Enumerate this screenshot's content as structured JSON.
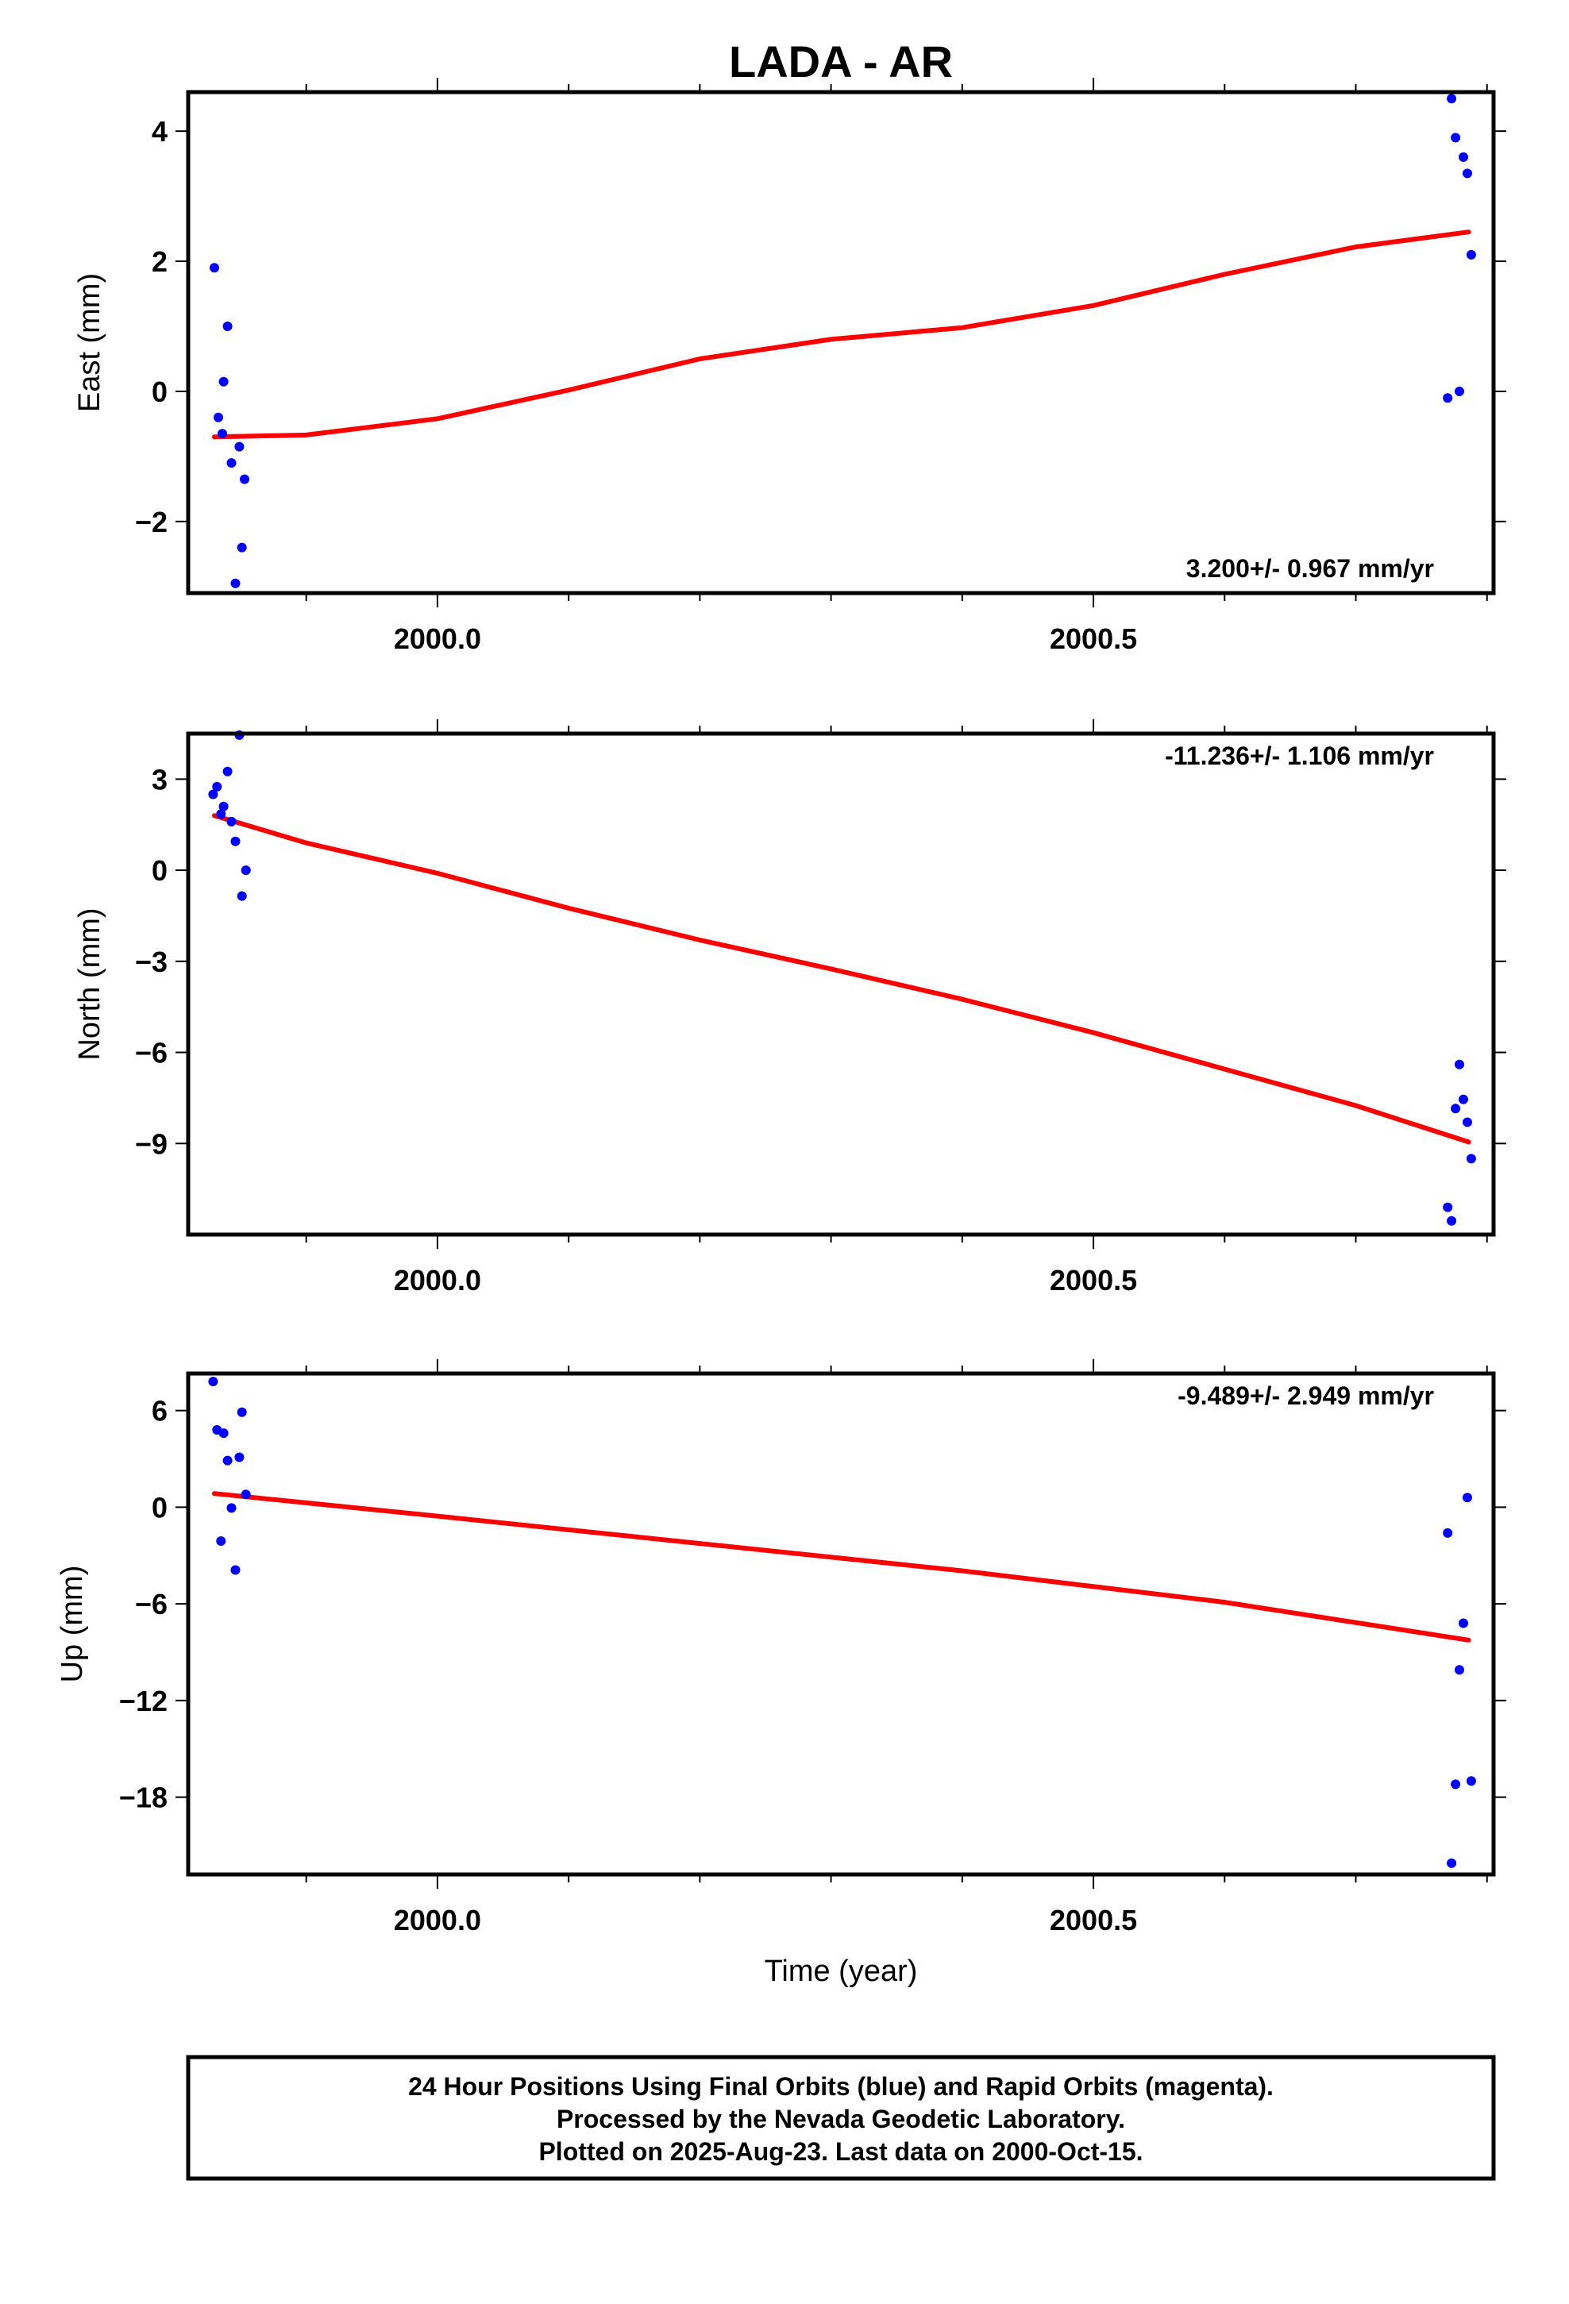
{
  "chart_data": {
    "type": "scatter",
    "title": "LADA - AR",
    "xlabel": "Time (year)",
    "xlim": [
      1999.81,
      2000.805
    ],
    "x_ticks": [
      "2000.0",
      "2000.5"
    ],
    "footer": [
      "24 Hour Positions Using Final Orbits (blue) and Rapid Orbits (magenta).",
      "Processed by the Nevada Geodetic Laboratory.",
      "Plotted on 2025-Aug-23. Last data on 2000-Oct-15."
    ],
    "colors": {
      "points": "#0000ff",
      "fit": "#ff0000",
      "frame": "#000000"
    },
    "panels": [
      {
        "ylabel": "East (mm)",
        "rate": "3.200+/- 0.967 mm/yr",
        "rate_position": "bottom-right",
        "ylim": [
          -3.1,
          4.6
        ],
        "y_ticks": [
          -2,
          0,
          2,
          4
        ],
        "y_tick_labels": [
          "−2",
          "0",
          "2",
          "4"
        ],
        "points": [
          [
            1999.83,
            1.9
          ],
          [
            1999.833,
            -0.4
          ],
          [
            1999.836,
            -0.65
          ],
          [
            1999.837,
            0.15
          ],
          [
            1999.84,
            1.0
          ],
          [
            1999.843,
            -1.1
          ],
          [
            1999.846,
            -2.95
          ],
          [
            1999.849,
            -0.85
          ],
          [
            1999.851,
            -2.4
          ],
          [
            1999.853,
            -1.35
          ],
          [
            2000.77,
            -0.1
          ],
          [
            2000.773,
            4.5
          ],
          [
            2000.776,
            3.9
          ],
          [
            2000.779,
            0.0
          ],
          [
            2000.782,
            3.6
          ],
          [
            2000.785,
            3.35
          ],
          [
            2000.788,
            2.1
          ]
        ],
        "fit": [
          [
            1999.83,
            -0.7
          ],
          [
            1999.9,
            -0.67
          ],
          [
            2000.0,
            -0.42
          ],
          [
            2000.1,
            0.02
          ],
          [
            2000.2,
            0.5
          ],
          [
            2000.3,
            0.8
          ],
          [
            2000.4,
            0.98
          ],
          [
            2000.5,
            1.32
          ],
          [
            2000.6,
            1.8
          ],
          [
            2000.7,
            2.22
          ],
          [
            2000.786,
            2.45
          ]
        ]
      },
      {
        "ylabel": "North (mm)",
        "rate": "-11.236+/- 1.106 mm/yr",
        "rate_position": "top-right",
        "ylim": [
          -12,
          4.5
        ],
        "y_ticks": [
          -9,
          -6,
          -3,
          0,
          3
        ],
        "y_tick_labels": [
          "−9",
          "−6",
          "−3",
          "0",
          "3"
        ],
        "points": [
          [
            1999.829,
            2.5
          ],
          [
            1999.832,
            2.75
          ],
          [
            1999.835,
            1.85
          ],
          [
            1999.837,
            2.1
          ],
          [
            1999.84,
            3.25
          ],
          [
            1999.843,
            1.6
          ],
          [
            1999.846,
            0.95
          ],
          [
            1999.849,
            4.45
          ],
          [
            1999.851,
            -0.85
          ],
          [
            1999.854,
            0.0
          ],
          [
            2000.77,
            -11.1
          ],
          [
            2000.773,
            -11.55
          ],
          [
            2000.776,
            -7.85
          ],
          [
            2000.779,
            -6.4
          ],
          [
            2000.782,
            -7.55
          ],
          [
            2000.785,
            -8.3
          ],
          [
            2000.788,
            -9.5
          ]
        ],
        "fit": [
          [
            1999.83,
            1.8
          ],
          [
            1999.9,
            0.9
          ],
          [
            2000.0,
            -0.1
          ],
          [
            2000.1,
            -1.25
          ],
          [
            2000.2,
            -2.3
          ],
          [
            2000.3,
            -3.25
          ],
          [
            2000.4,
            -4.25
          ],
          [
            2000.5,
            -5.35
          ],
          [
            2000.6,
            -6.55
          ],
          [
            2000.7,
            -7.75
          ],
          [
            2000.786,
            -8.95
          ]
        ]
      },
      {
        "ylabel": "Up (mm)",
        "rate": "-9.489+/- 2.949 mm/yr",
        "rate_position": "top-right",
        "ylim": [
          -22.8,
          8.3
        ],
        "y_ticks": [
          -18,
          -12,
          -6,
          0,
          6
        ],
        "y_tick_labels": [
          "−18",
          "−12",
          "−6",
          "0",
          "6"
        ],
        "points": [
          [
            1999.829,
            7.8
          ],
          [
            1999.832,
            4.8
          ],
          [
            1999.835,
            -2.1
          ],
          [
            1999.837,
            4.6
          ],
          [
            1999.84,
            2.9
          ],
          [
            1999.843,
            -0.05
          ],
          [
            1999.846,
            -3.9
          ],
          [
            1999.849,
            3.1
          ],
          [
            1999.851,
            5.9
          ],
          [
            1999.854,
            0.8
          ],
          [
            2000.77,
            -1.6
          ],
          [
            2000.773,
            -22.1
          ],
          [
            2000.776,
            -17.2
          ],
          [
            2000.779,
            -10.1
          ],
          [
            2000.782,
            -7.2
          ],
          [
            2000.785,
            0.6
          ],
          [
            2000.788,
            -17.0
          ]
        ],
        "fit": [
          [
            1999.83,
            0.85
          ],
          [
            2000.0,
            -0.55
          ],
          [
            2000.2,
            -2.25
          ],
          [
            2000.4,
            -3.95
          ],
          [
            2000.6,
            -5.9
          ],
          [
            2000.786,
            -8.25
          ]
        ]
      }
    ]
  }
}
